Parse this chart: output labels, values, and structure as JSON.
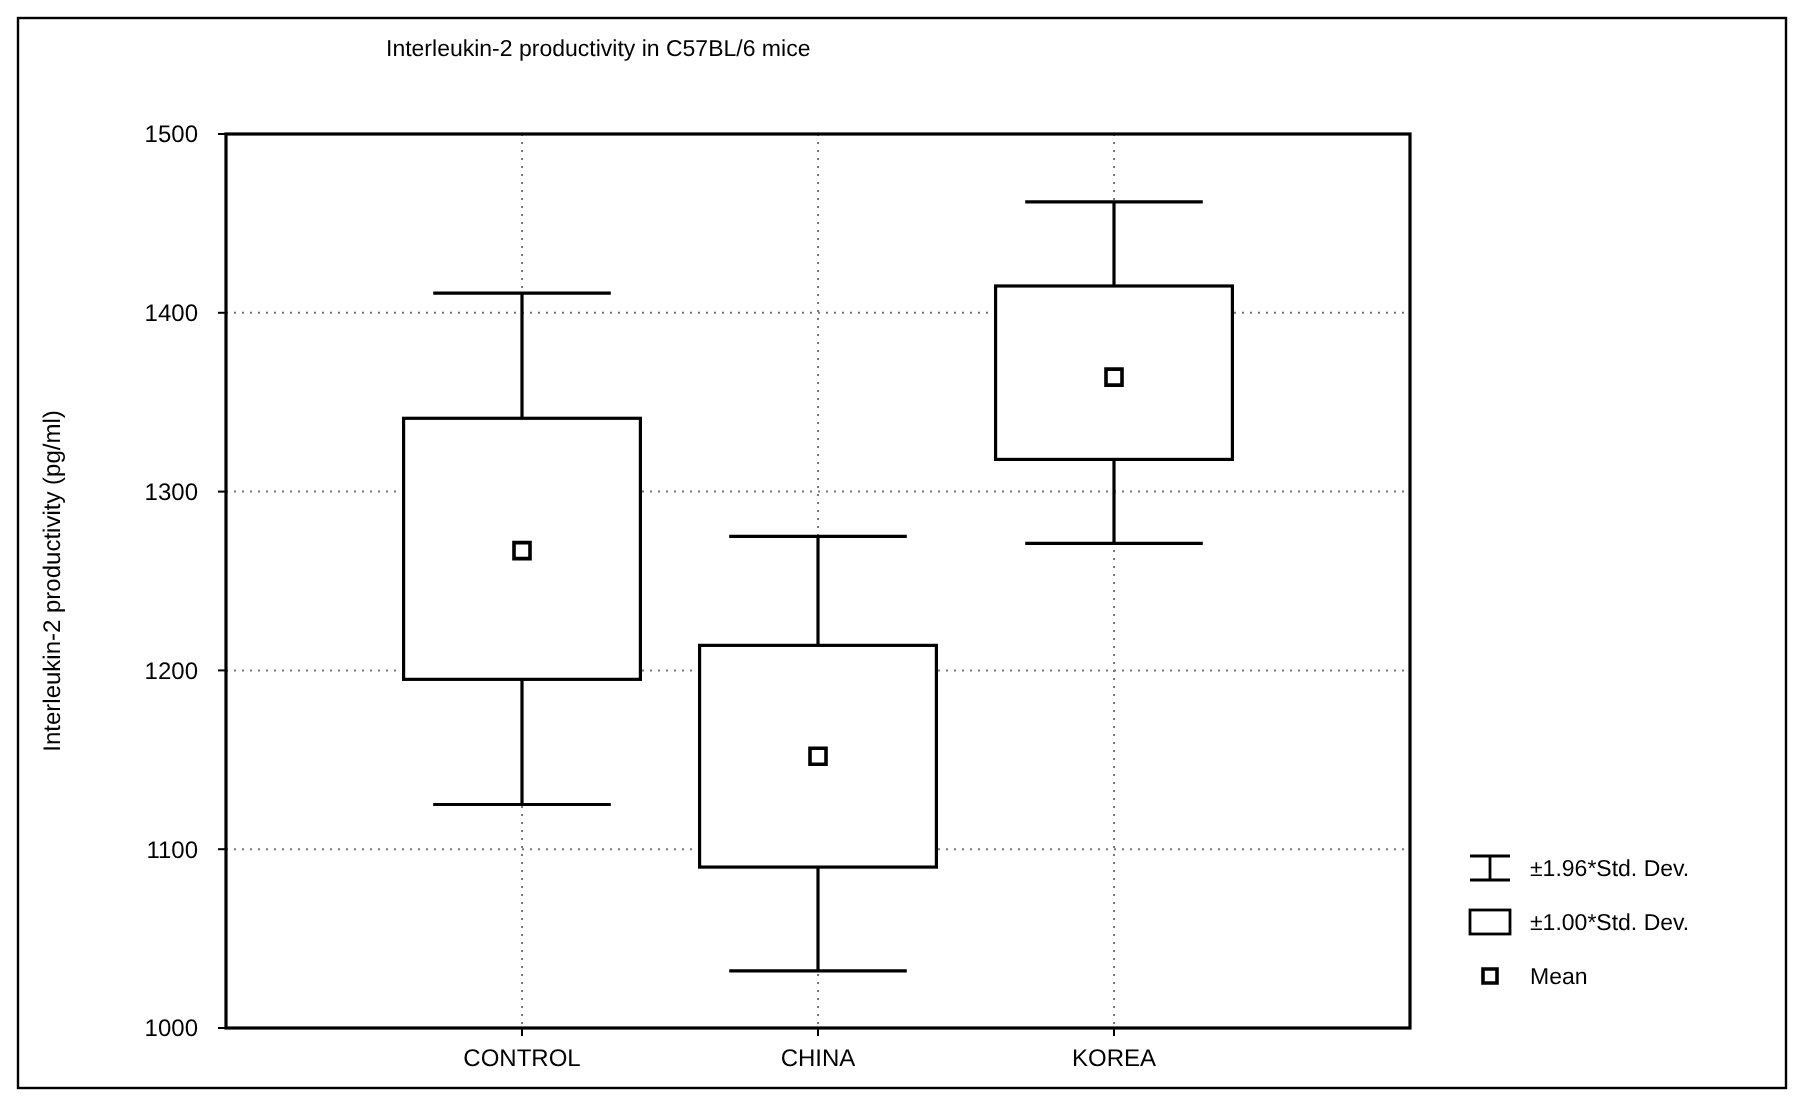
{
  "chart_data": {
    "type": "box",
    "title": "Interleukin-2 productivity in C57BL/6 mice",
    "ylabel": "Interleukin-2 productivity (pg/ml)",
    "categories": [
      "CONTROL",
      "CHINA",
      "KOREA"
    ],
    "boxes": [
      {
        "low": 1125,
        "q1": 1195,
        "q3": 1341,
        "high": 1411
      },
      {
        "low": 1032,
        "q1": 1090,
        "q3": 1214,
        "high": 1275
      },
      {
        "low": 1271,
        "q1": 1318,
        "q3": 1415,
        "high": 1462
      }
    ],
    "series": [
      {
        "type": "scatter",
        "name": "Mean",
        "color": "#000000",
        "x": [
          "CONTROL",
          "CHINA",
          "KOREA"
        ],
        "values": [
          1267,
          1152,
          1364
        ]
      }
    ],
    "color": "#000000",
    "ylim": [
      1000,
      1500
    ],
    "yticks": [
      1000,
      1100,
      1200,
      1300,
      1400,
      1500
    ],
    "grid": true,
    "marker": "square",
    "legend": "bottom right",
    "annotations": [
      "±1.96*Std. Dev.",
      "±1.00*Std. Dev."
    ]
  }
}
